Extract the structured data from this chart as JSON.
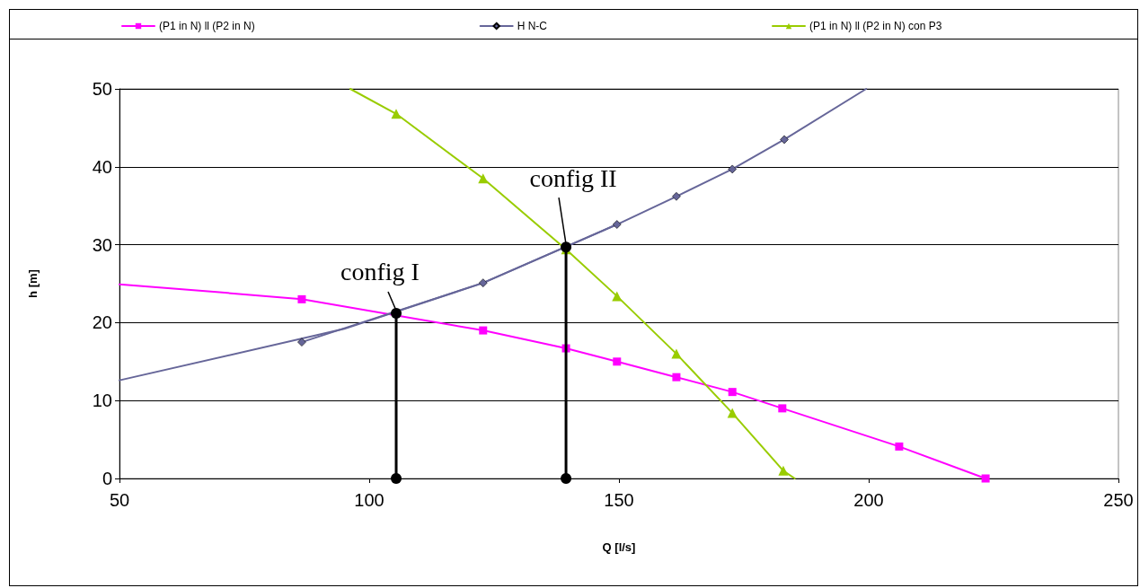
{
  "chart_data": {
    "type": "line",
    "xlabel": "Q [l/s]",
    "ylabel": "h [m]",
    "xlim": [
      50,
      250
    ],
    "xticks": [
      50,
      100,
      150,
      200,
      250
    ],
    "ylim": [
      0,
      50
    ],
    "yticks": [
      0,
      10,
      20,
      30,
      40,
      50
    ],
    "grid": "y",
    "legend": "top",
    "line_style": "solid",
    "series": [
      {
        "name": "(P1 in N) ll (P2 in N)",
        "color": "#ff00ff",
        "marker": "square",
        "x": [
          86.5,
          122.8,
          139.4,
          149.6,
          161.5,
          172.7,
          182.7,
          206.1,
          223.4
        ],
        "values": [
          23.0,
          19.0,
          16.7,
          15.0,
          13.0,
          11.1,
          9.0,
          4.1,
          0
        ]
      },
      {
        "name": "H N-C",
        "color": "#666699",
        "marker": "diamond",
        "x": [
          86.5,
          122.8,
          149.6,
          161.5,
          172.7,
          183.1
        ],
        "values": [
          17.5,
          25.1,
          32.6,
          36.2,
          39.7,
          43.5
        ]
      },
      {
        "name": "(P1 in N) ll (P2 in N) con P3",
        "color": "#99cc00",
        "marker": "triangle",
        "x": [
          105.4,
          122.8,
          139.4,
          149.6,
          161.5,
          172.7,
          182.9
        ],
        "values": [
          46.8,
          38.5,
          29.4,
          23.4,
          16.0,
          8.4,
          1.0
        ]
      },
      {
        "color": "#ff00ff",
        "marker": "none",
        "x": [
          50,
          70,
          86.5
        ],
        "values": [
          24.9,
          23.9,
          23.0
        ]
      },
      {
        "color": "#666699",
        "marker": "none",
        "x": [
          50,
          95,
          122.8,
          149.6
        ],
        "values": [
          12.6,
          19.2,
          25.1,
          32.6
        ]
      },
      {
        "color": "#666699",
        "marker": "none",
        "x": [
          183.1,
          199.5
        ],
        "values": [
          43.5,
          50
        ]
      },
      {
        "color": "#99cc00",
        "marker": "none",
        "x": [
          96.2,
          105.4
        ],
        "values": [
          50,
          46.8
        ]
      },
      {
        "color": "#99cc00",
        "marker": "none",
        "x": [
          182.9,
          185.2
        ],
        "values": [
          1.0,
          0
        ]
      },
      {
        "color": "#000000",
        "marker": "circle",
        "x": [
          105.4,
          105.4
        ],
        "values": [
          0,
          21.2
        ]
      },
      {
        "color": "#000000",
        "marker": "circle",
        "x": [
          139.4,
          139.4
        ],
        "values": [
          0,
          29.7
        ]
      }
    ],
    "annotations": [
      {
        "text": "config I",
        "x": 105.4,
        "y": 21.2
      },
      {
        "text": "config II",
        "x": 139.4,
        "y": 29.7
      }
    ]
  }
}
